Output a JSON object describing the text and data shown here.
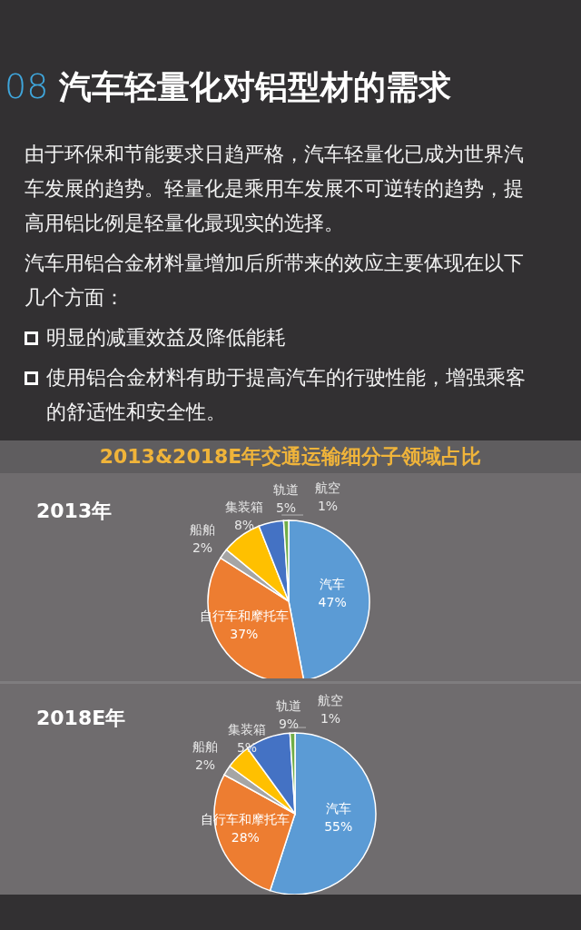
{
  "chart_data": [
    {
      "type": "other",
      "title": "08 汽车轻量化对铝型材的需求",
      "annotations": [
        "由于环保和节能要求日趋严格，汽车轻量化已成为世界汽车发展的趋势。轻量化是乘用车发展不可逆转的趋势，提高用铝比例是轻量化最现实的选择。",
        "汽车用铝合金材料量增加后所带来的效应主要体现在以下几个方面：",
        "明显的减重效益及降低能耗",
        "使用铝合金材料有助于提高汽车的行驶性能，增强乘客的舒适性和安全性。"
      ]
    },
    {
      "type": "pie",
      "title": "2013&2018E年交通运输细分子领域占比",
      "subtitle": "2013年",
      "categories": [
        "汽车",
        "自行车和摩托车",
        "船舶",
        "集装箱",
        "轨道",
        "航空"
      ],
      "values": [
        47,
        37,
        2,
        8,
        5,
        1
      ],
      "colors": [
        "#5b9bd5",
        "#ed7d31",
        "#a5a5a5",
        "#ffc000",
        "#4472c4",
        "#70ad47"
      ],
      "value_labels": [
        "47%",
        "37%",
        "2%",
        "8%",
        "5%",
        "1%"
      ]
    },
    {
      "type": "pie",
      "subtitle": "2018E年",
      "categories": [
        "汽车",
        "自行车和摩托车",
        "船舶",
        "集装箱",
        "轨道",
        "航空"
      ],
      "values": [
        55,
        28,
        2,
        5,
        9,
        1
      ],
      "colors": [
        "#5b9bd5",
        "#ed7d31",
        "#a5a5a5",
        "#ffc000",
        "#4472c4",
        "#70ad47"
      ],
      "value_labels": [
        "55%",
        "28%",
        "2%",
        "5%",
        "9%",
        "1%"
      ]
    }
  ]
}
